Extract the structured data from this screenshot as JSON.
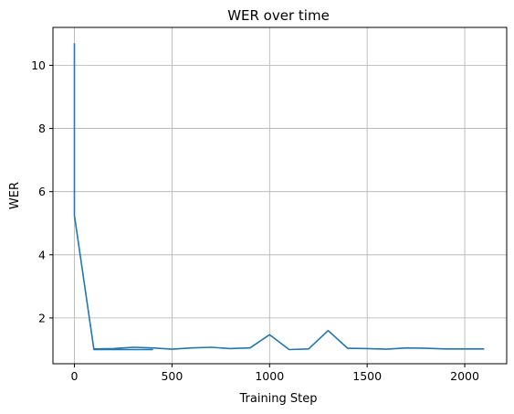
{
  "chart_data": {
    "type": "line",
    "title": "WER over time",
    "xlabel": "Training Step",
    "ylabel": "WER",
    "xlim": [
      -110,
      2215
    ],
    "ylim": [
      0.55,
      11.2
    ],
    "xticks": [
      0,
      500,
      1000,
      1500,
      2000
    ],
    "yticks": [
      2,
      4,
      6,
      8,
      10
    ],
    "grid": true,
    "line_color": "#1f77b4",
    "series": [
      {
        "x": [
          0,
          0,
          0,
          100,
          200,
          300,
          400,
          300,
          200,
          100,
          200,
          300,
          400,
          500,
          600,
          700,
          800,
          900,
          1000,
          1100,
          1200,
          1300,
          1400,
          1500,
          1600,
          1700,
          1800,
          1900,
          2000,
          2100
        ],
        "y": [
          10.7,
          10.0,
          5.25,
          1.0,
          1.0,
          1.0,
          1.0,
          1.0,
          1.0,
          1.02,
          1.03,
          1.07,
          1.05,
          1.01,
          1.05,
          1.07,
          1.03,
          1.05,
          1.47,
          1.0,
          1.02,
          1.6,
          1.04,
          1.03,
          1.01,
          1.05,
          1.04,
          1.02,
          1.02,
          1.02
        ]
      }
    ]
  }
}
